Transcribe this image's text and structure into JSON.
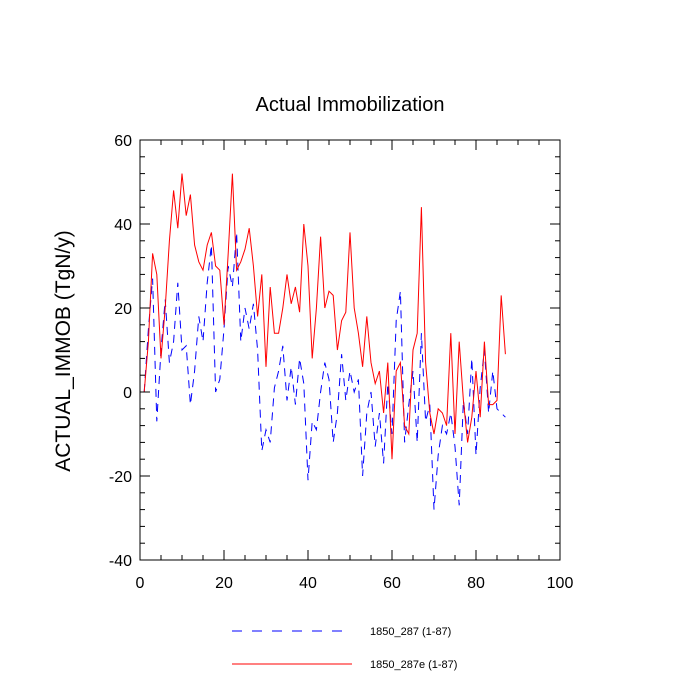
{
  "chart_data": {
    "type": "line",
    "title": "Actual Immobilization",
    "xlabel": "",
    "ylabel": "ACTUAL_IMMOB  (TgN/y)",
    "xlim": [
      0,
      100
    ],
    "ylim": [
      -40,
      60
    ],
    "xticks": [
      0,
      20,
      40,
      60,
      80,
      100
    ],
    "yticks": [
      -40,
      -20,
      0,
      20,
      40,
      60
    ],
    "xtick_labels": [
      "0",
      "20",
      "40",
      "60",
      "80",
      "100"
    ],
    "ytick_labels": [
      "-40",
      "-20",
      "0",
      "20",
      "40",
      "60"
    ],
    "grid": false,
    "legend_position": "bottom",
    "series": [
      {
        "name": "1850_287 (1-87)",
        "color": "#0000ff",
        "style": "dashed",
        "x": [
          1,
          2,
          3,
          4,
          5,
          6,
          7,
          8,
          9,
          10,
          11,
          12,
          13,
          14,
          15,
          16,
          17,
          18,
          19,
          20,
          21,
          22,
          23,
          24,
          25,
          26,
          27,
          28,
          29,
          30,
          31,
          32,
          33,
          34,
          35,
          36,
          37,
          38,
          39,
          40,
          41,
          42,
          43,
          44,
          45,
          46,
          47,
          48,
          49,
          50,
          51,
          52,
          53,
          54,
          55,
          56,
          57,
          58,
          59,
          60,
          61,
          62,
          63,
          64,
          65,
          66,
          67,
          68,
          69,
          70,
          71,
          72,
          73,
          74,
          75,
          76,
          77,
          78,
          79,
          80,
          81,
          82,
          83,
          84,
          85,
          86,
          87
        ],
        "values": [
          0,
          15,
          27,
          -7,
          10,
          22,
          7,
          12,
          26,
          10,
          11,
          -3,
          5,
          18,
          12,
          26,
          35,
          0,
          3,
          15,
          30,
          25,
          38,
          12,
          20,
          15,
          21,
          10,
          -14,
          -9,
          -12,
          1,
          5,
          11,
          -2,
          6,
          -3,
          8,
          2,
          -21,
          -7,
          -9,
          0,
          7,
          3,
          -12,
          -5,
          9,
          -2,
          5,
          0,
          3,
          -20,
          -5,
          0,
          -13,
          -5,
          -17,
          2,
          -10,
          17,
          24,
          -12,
          -3,
          5,
          -12,
          14,
          -7,
          -3,
          -28,
          -15,
          -8,
          -10,
          -5,
          -13,
          -27,
          -2,
          -10,
          8,
          -15,
          1,
          10,
          -5,
          5,
          -4,
          -5,
          -6
        ]
      },
      {
        "name": "1850_287e (1-87)",
        "color": "#ff0000",
        "style": "solid",
        "x": [
          1,
          2,
          3,
          4,
          5,
          6,
          7,
          8,
          9,
          10,
          11,
          12,
          13,
          14,
          15,
          16,
          17,
          18,
          19,
          20,
          21,
          22,
          23,
          24,
          25,
          26,
          27,
          28,
          29,
          30,
          31,
          32,
          33,
          34,
          35,
          36,
          37,
          38,
          39,
          40,
          41,
          42,
          43,
          44,
          45,
          46,
          47,
          48,
          49,
          50,
          51,
          52,
          53,
          54,
          55,
          56,
          57,
          58,
          59,
          60,
          61,
          62,
          63,
          64,
          65,
          66,
          67,
          68,
          69,
          70,
          71,
          72,
          73,
          74,
          75,
          76,
          77,
          78,
          79,
          80,
          81,
          82,
          83,
          84,
          85,
          86,
          87
        ],
        "values": [
          0,
          12,
          33,
          28,
          8,
          20,
          36,
          48,
          39,
          52,
          42,
          47,
          35,
          31,
          29,
          35,
          38,
          30,
          29,
          16,
          33,
          52,
          29,
          31,
          34,
          39,
          30,
          18,
          28,
          6,
          25,
          14,
          14,
          20,
          28,
          21,
          25,
          19,
          40,
          30,
          8,
          20,
          37,
          20,
          24,
          23,
          10,
          17,
          19,
          38,
          20,
          14,
          6,
          18,
          7,
          2,
          5,
          -5,
          7,
          -16,
          5,
          7,
          -8,
          -10,
          10,
          14,
          44,
          7,
          -5,
          -10,
          -4,
          -5,
          -8,
          14,
          -10,
          12,
          -2,
          -12,
          -6,
          5,
          -6,
          12,
          -3,
          -3,
          -2,
          23,
          9
        ]
      }
    ]
  }
}
